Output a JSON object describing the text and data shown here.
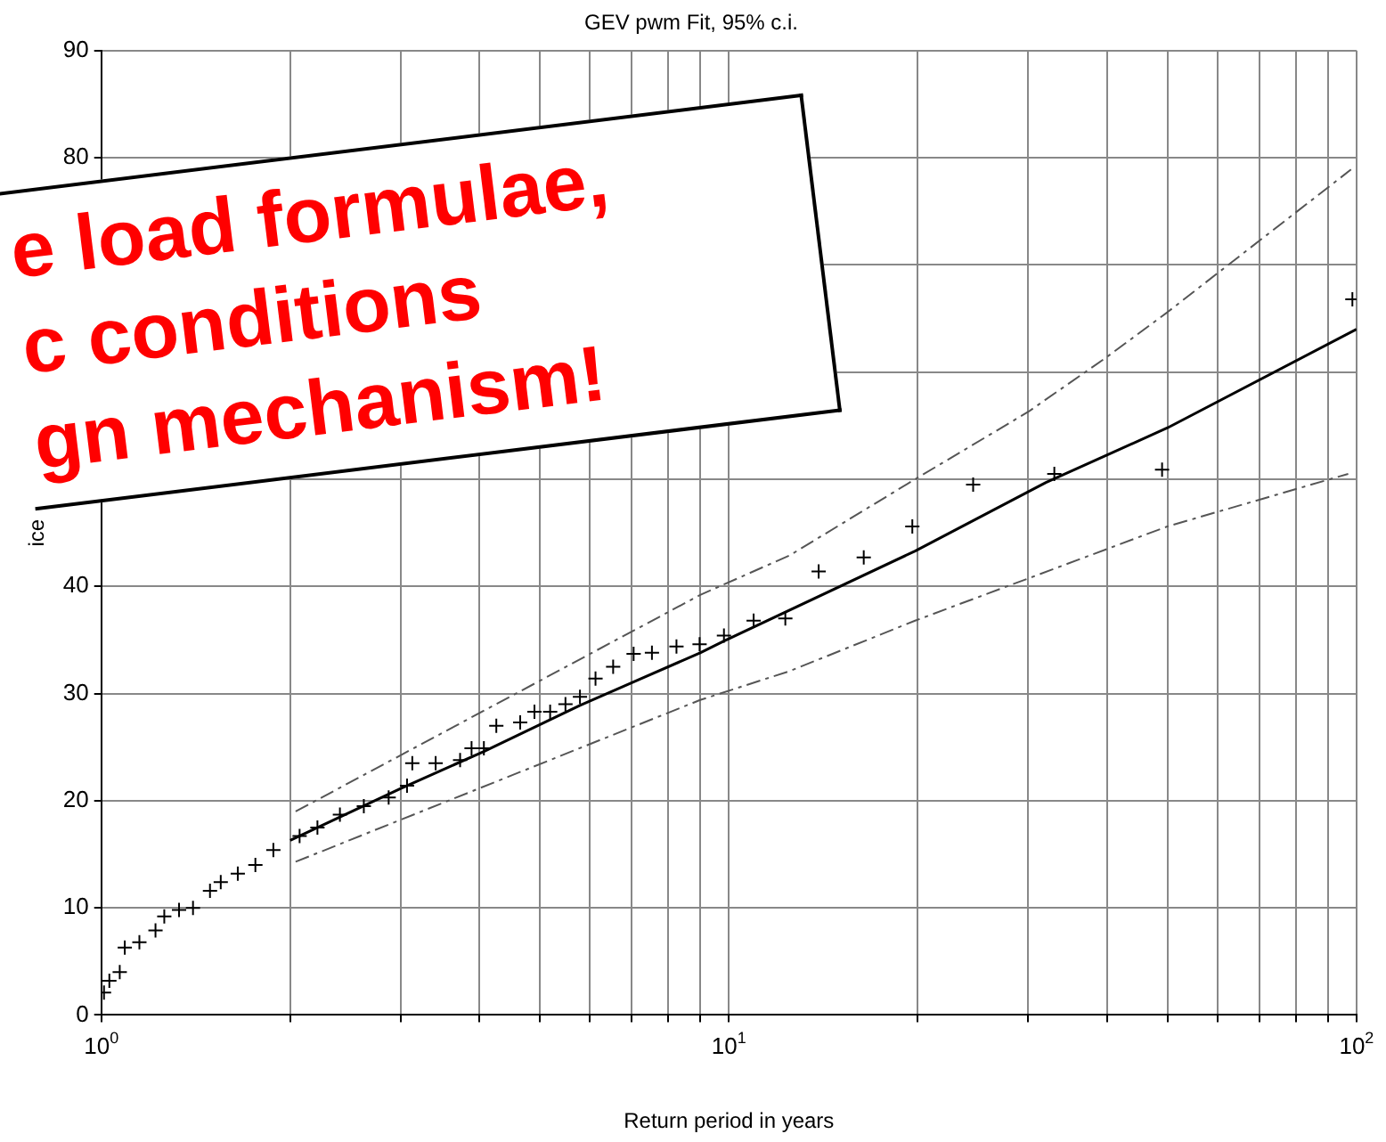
{
  "chart_data": {
    "type": "scatter",
    "title": "GEV pwm Fit, 95% c.i.",
    "xlabel": "Return period in years",
    "ylabel": "ice",
    "log": "x",
    "xlim": [
      1,
      100
    ],
    "xticks": [
      {
        "value": 1,
        "label": "10$^{0}$"
      },
      {
        "value": 2,
        "label": null
      },
      {
        "value": 3,
        "label": null
      },
      {
        "value": 4,
        "label": null
      },
      {
        "value": 5,
        "label": null
      },
      {
        "value": 6,
        "label": null
      },
      {
        "value": 7,
        "label": null
      },
      {
        "value": 8,
        "label": null
      },
      {
        "value": 9,
        "label": null
      },
      {
        "value": 10,
        "label": "10$^{1}$"
      },
      {
        "value": 20,
        "label": null
      },
      {
        "value": 30,
        "label": null
      },
      {
        "value": 40,
        "label": null
      },
      {
        "value": 50,
        "label": null
      },
      {
        "value": 60,
        "label": null
      },
      {
        "value": 70,
        "label": null
      },
      {
        "value": 80,
        "label": null
      },
      {
        "value": 90,
        "label": null
      },
      {
        "value": 100,
        "label": "10$^{2}$"
      }
    ],
    "ylim": [
      0,
      90
    ],
    "yticks": [
      0,
      10,
      20,
      30,
      40,
      {
        "value": 50,
        "label": null
      },
      {
        "value": 60,
        "label": null
      },
      {
        "value": 70,
        "label": null
      },
      80,
      90
    ],
    "grid": true,
    "legend": false,
    "annotations": [
      "e load formulae,",
      "c conditions",
      "gn mechanism!"
    ],
    "series": [
      {
        "color": "#000000",
        "marker": "cross",
        "x": [
          1.01,
          1.03,
          1.07,
          1.09,
          1.15,
          1.22,
          1.26,
          1.33,
          1.4,
          1.49,
          1.55,
          1.65,
          1.76,
          1.88,
          2.07,
          2.21,
          2.4,
          2.62,
          2.87,
          3.07,
          3.13,
          3.41,
          3.73,
          3.89,
          4.07,
          4.26,
          4.65,
          4.9,
          5.19,
          5.49,
          5.79,
          6.13,
          6.54,
          7.05,
          7.54,
          8.25,
          8.98,
          9.82,
          10.95,
          12.3,
          13.9,
          16.4,
          19.6,
          24.5,
          33,
          49,
          98.5
        ],
        "values": [
          2.1,
          3.2,
          4,
          6.3,
          6.8,
          7.9,
          9.2,
          9.8,
          10,
          11.6,
          12.4,
          13.2,
          14,
          15.4,
          16.7,
          17.5,
          18.7,
          19.5,
          20.3,
          21.4,
          23.5,
          23.5,
          23.8,
          24.9,
          24.9,
          27,
          27.3,
          28.3,
          28.3,
          29,
          29.7,
          31.4,
          32.5,
          33.7,
          33.8,
          34.4,
          34.6,
          35.4,
          36.8,
          37,
          41.4,
          42.7,
          45.6,
          49.5,
          50.5,
          50.9,
          66.8
        ]
      },
      {
        "type": "line",
        "color": "#000000",
        "marker": "none",
        "line_style": "solid",
        "x": [
          2,
          2.99,
          4.07,
          5.79,
          9,
          9.82,
          19.8,
          32,
          50,
          100
        ],
        "values": [
          16.3,
          21.1,
          24.6,
          28.9,
          33.8,
          34.9,
          43.3,
          49.7,
          54.8,
          64
        ]
      },
      {
        "type": "line",
        "color": "#555555",
        "marker": "none",
        "line_style": "dashed",
        "x": [
          2.04,
          9,
          12.5,
          19.8,
          30,
          40,
          50,
          98
        ],
        "values": [
          19,
          39.2,
          42.9,
          50,
          56.3,
          61.4,
          65.6,
          78.9
        ]
      },
      {
        "type": "line",
        "color": "#555555",
        "marker": "none",
        "line_style": "dashed",
        "x": [
          2.04,
          9,
          12.5,
          19.8,
          50,
          97
        ],
        "values": [
          14.3,
          29.4,
          32.1,
          36.8,
          45.6,
          50.5
        ]
      }
    ]
  }
}
